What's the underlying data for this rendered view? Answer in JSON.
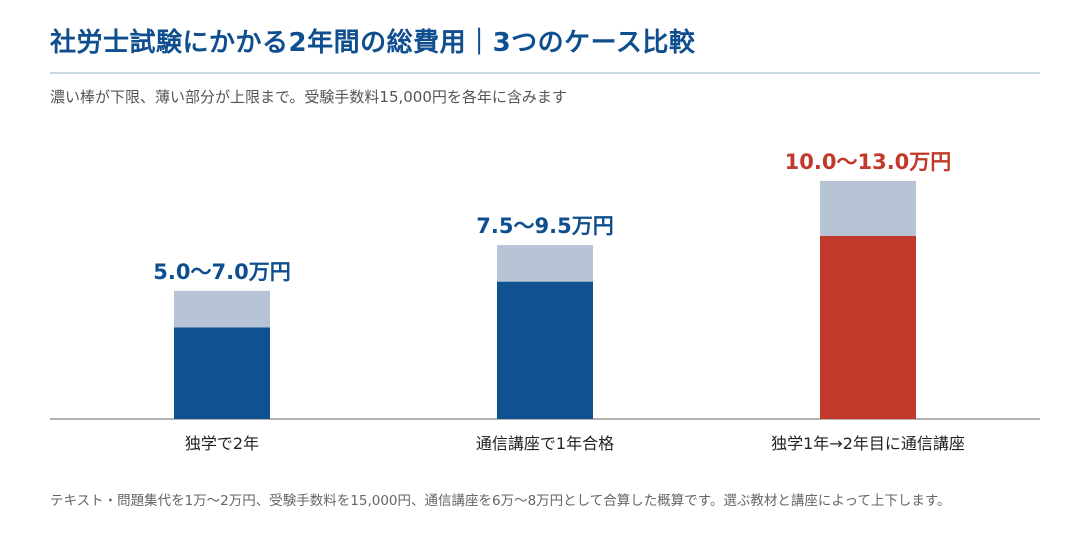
{
  "header": {
    "title": "社労士試験にかかる2年間の総費用｜3つのケース比較",
    "subtitle": "濃い棒が下限、薄い部分が上限まで。受験手数料15,000円を各年に含みます"
  },
  "footnote": "テキスト・問題集代を1万〜2万円、受験手数料を15,000円、通信講座を6万〜8万円として合算した概算です。選ぶ教材と講座によって上下します。",
  "colors": {
    "lower_blue": "#0f5191",
    "lower_red": "#c1392b",
    "upper_light": "#b6c4d5",
    "label_blue": "#0f4f8f",
    "label_red": "#c1392b",
    "axis": "#999999"
  },
  "chart_data": {
    "type": "bar",
    "stacked": true,
    "categories": [
      "独学で2年",
      "通信講座で1年合格",
      "独学1年→2年目に通信講座"
    ],
    "series": [
      {
        "values": [
          5.0,
          7.5,
          10.0
        ]
      },
      {
        "values": [
          2.0,
          2.0,
          3.0
        ]
      }
    ],
    "range_low": [
      5.0,
      7.5,
      10.0
    ],
    "range_high": [
      7.0,
      9.5,
      13.0
    ],
    "range_labels": [
      "5.0〜7.0万円",
      "7.5〜9.5万円",
      "10.0〜13.0万円"
    ],
    "highlight_index": 2,
    "unit": "万円",
    "ylim": [
      0,
      13.0
    ],
    "grid": false
  }
}
